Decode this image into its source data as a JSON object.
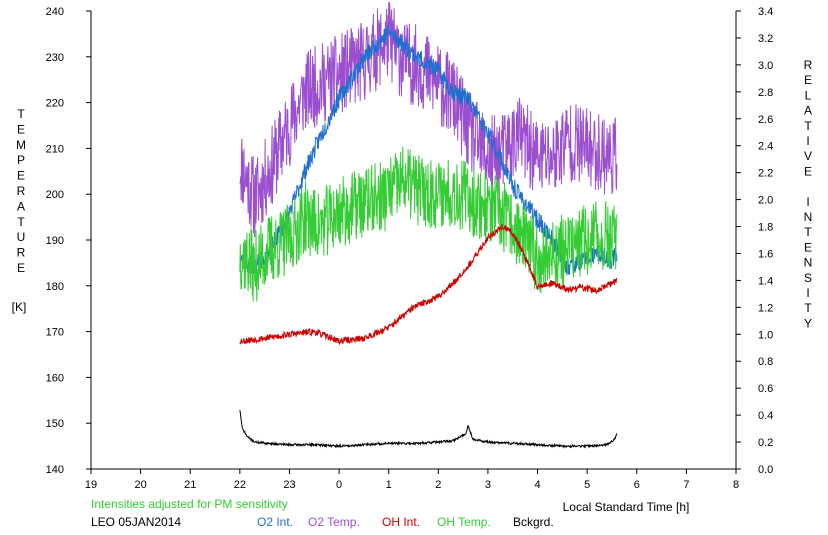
{
  "chart_data": {
    "type": "line",
    "title": "",
    "xlabel": "Local Standard Time [h]",
    "ylabel_left_letters": [
      "T",
      "E",
      "M",
      "P",
      "E",
      "R",
      "A",
      "T",
      "U",
      "R",
      "E"
    ],
    "ylabel_left_unit": "[K]",
    "ylabel_right_words": [
      [
        "R",
        "E",
        "L",
        "A",
        "T",
        "I",
        "V",
        "E"
      ],
      [
        "I",
        "N",
        "T",
        "E",
        "N",
        "S",
        "I",
        "T",
        "Y"
      ]
    ],
    "x_ticks": [
      "19",
      "20",
      "21",
      "22",
      "23",
      "0",
      "1",
      "2",
      "3",
      "4",
      "5",
      "6",
      "7",
      "8"
    ],
    "xlim": [
      19,
      32
    ],
    "y_left_ticks": [
      "140",
      "150",
      "160",
      "170",
      "180",
      "190",
      "200",
      "210",
      "220",
      "230",
      "240"
    ],
    "y_left_lim": [
      140,
      240
    ],
    "y_right_ticks": [
      "0.0",
      "0.2",
      "0.4",
      "0.6",
      "0.8",
      "1.0",
      "1.2",
      "1.4",
      "1.6",
      "1.8",
      "2.0",
      "2.2",
      "2.4",
      "2.6",
      "2.8",
      "3.0",
      "3.2",
      "3.4"
    ],
    "y_right_lim": [
      0,
      3.4
    ],
    "grid": false,
    "note": "Intensities adjusted for PM sensitivity",
    "station_label": "LEO 05JAN2014",
    "legend": [
      {
        "label": "O2 Int.",
        "color": "#1f6fd0"
      },
      {
        "label": "O2 Temp.",
        "color": "#9b4fd0"
      },
      {
        "label": "OH Int.",
        "color": "#cc0000"
      },
      {
        "label": "OH Temp.",
        "color": "#33cc33"
      },
      {
        "label": "Bckgrd.",
        "color": "#000000"
      }
    ],
    "series": [
      {
        "name": "O2 Temp.",
        "axis": "left",
        "color": "#9b4fd0",
        "noise": 9,
        "seed": 11,
        "x": [
          22.0,
          22.3,
          22.6,
          23.0,
          23.3,
          23.6,
          24.0,
          24.5,
          25.0,
          25.3,
          25.6,
          26.0,
          26.3,
          26.6,
          27.0,
          27.3,
          27.6,
          28.0,
          28.3,
          28.6,
          29.0,
          29.3,
          29.6
        ],
        "y": [
          207,
          199,
          205,
          215,
          222,
          224,
          226,
          229,
          234,
          229,
          228,
          224,
          221,
          214,
          208,
          209,
          213,
          208,
          208,
          212,
          210,
          209,
          208
        ]
      },
      {
        "name": "O2 Int.",
        "axis": "right",
        "color": "#1f6fd0",
        "noise": 0.07,
        "seed": 23,
        "x": [
          22.0,
          22.3,
          22.6,
          23.0,
          23.3,
          23.6,
          24.0,
          24.5,
          25.0,
          25.3,
          25.6,
          26.0,
          26.3,
          26.6,
          26.9,
          27.2,
          27.5,
          27.8,
          28.1,
          28.4,
          28.6,
          28.9,
          29.2,
          29.5,
          29.6
        ],
        "y": [
          1.55,
          1.5,
          1.62,
          1.9,
          2.2,
          2.45,
          2.75,
          3.05,
          3.25,
          3.15,
          3.05,
          2.95,
          2.8,
          2.75,
          2.55,
          2.35,
          2.1,
          1.95,
          1.8,
          1.65,
          1.5,
          1.55,
          1.6,
          1.55,
          1.6
        ]
      },
      {
        "name": "OH Temp.",
        "axis": "left",
        "color": "#33cc33",
        "noise": 8,
        "seed": 37,
        "x": [
          22.0,
          22.3,
          22.6,
          23.0,
          23.3,
          23.6,
          24.0,
          24.5,
          25.0,
          25.3,
          25.6,
          26.0,
          26.3,
          26.6,
          27.0,
          27.3,
          27.6,
          28.0,
          28.3,
          28.6,
          29.0,
          29.3,
          29.6
        ],
        "y": [
          187,
          184,
          188,
          190,
          195,
          193,
          196,
          198,
          200,
          203,
          201,
          200,
          201,
          199,
          197,
          195,
          192,
          186,
          187,
          188,
          190,
          191,
          190
        ]
      },
      {
        "name": "OH Int.",
        "axis": "right",
        "color": "#cc0000",
        "noise": 0.025,
        "seed": 53,
        "x": [
          22.0,
          22.5,
          23.0,
          23.5,
          24.0,
          24.5,
          25.0,
          25.5,
          26.0,
          26.3,
          26.7,
          27.0,
          27.3,
          27.5,
          27.7,
          28.0,
          28.3,
          28.6,
          28.9,
          29.2,
          29.5,
          29.6
        ],
        "y": [
          0.95,
          0.97,
          1.0,
          1.02,
          0.95,
          0.97,
          1.05,
          1.2,
          1.28,
          1.38,
          1.55,
          1.72,
          1.8,
          1.75,
          1.62,
          1.35,
          1.38,
          1.33,
          1.35,
          1.32,
          1.38,
          1.4
        ]
      },
      {
        "name": "Bckgrd.",
        "axis": "right",
        "color": "#000000",
        "noise": 0.008,
        "seed": 71,
        "x": [
          22.0,
          22.05,
          22.15,
          22.3,
          22.6,
          23.0,
          23.5,
          24.0,
          24.5,
          25.0,
          25.5,
          26.0,
          26.3,
          26.55,
          26.6,
          26.7,
          27.0,
          27.5,
          28.0,
          28.5,
          29.0,
          29.4,
          29.55,
          29.6
        ],
        "y": [
          0.44,
          0.3,
          0.24,
          0.2,
          0.19,
          0.18,
          0.18,
          0.17,
          0.18,
          0.19,
          0.19,
          0.2,
          0.21,
          0.26,
          0.32,
          0.22,
          0.2,
          0.19,
          0.18,
          0.17,
          0.17,
          0.18,
          0.22,
          0.26
        ]
      }
    ]
  }
}
